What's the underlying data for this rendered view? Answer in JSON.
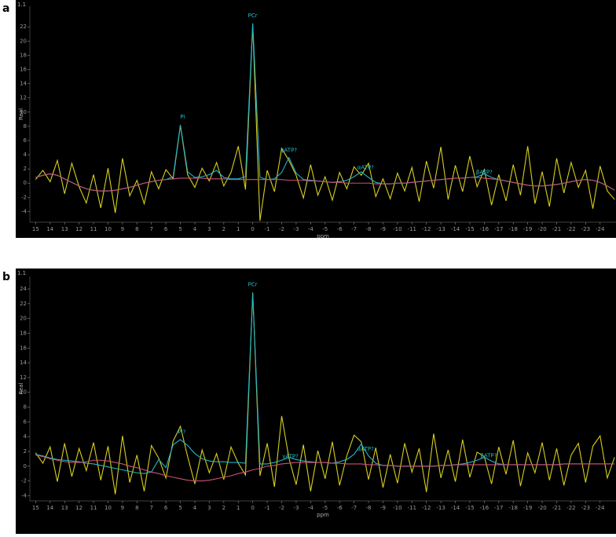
{
  "chart_data": [
    {
      "type": "line",
      "panel_label": "a",
      "corner_label": "1.1",
      "ylabel": "Real",
      "xlabel": "ppm",
      "x": [
        15,
        14.5,
        14,
        13.5,
        13,
        12.5,
        12,
        11.5,
        11,
        10.5,
        10,
        9.5,
        9,
        8.5,
        8,
        7.5,
        7,
        6.5,
        6,
        5.5,
        5,
        4.5,
        4,
        3.5,
        3,
        2.5,
        2,
        1.5,
        1,
        0.5,
        0,
        -0.5,
        -1,
        -1.5,
        -2,
        -2.5,
        -3,
        -3.5,
        -4,
        -4.5,
        -5,
        -5.5,
        -6,
        -6.5,
        -7,
        -7.5,
        -8,
        -8.5,
        -9,
        -9.5,
        -10,
        -10.5,
        -11,
        -11.5,
        -12,
        -12.5,
        -13,
        -13.5,
        -14,
        -14.5,
        -15,
        -15.5,
        -16,
        -16.5,
        -17,
        -17.5,
        -18,
        -18.5,
        -19,
        -19.5,
        -20,
        -20.5,
        -21,
        -21.5,
        -22,
        -22.5,
        -23,
        -23.5,
        -24,
        -24.5,
        -25
      ],
      "series": [
        {
          "color": "#d8cf1e",
          "values": [
            0.5,
            1.8,
            0.2,
            3.2,
            -1.5,
            2.8,
            -0.5,
            -2.8,
            1.2,
            -3.5,
            2.1,
            -4.2,
            3.5,
            -1.8,
            0.4,
            -2.9,
            1.6,
            -0.8,
            1.9,
            0.6,
            8.1,
            1.2,
            -0.6,
            2.1,
            0.3,
            2.9,
            -0.4,
            1.5,
            5.2,
            -0.9,
            22.3,
            -5.3,
            1.8,
            -1.2,
            4.9,
            3.2,
            1.1,
            -2.1,
            2.6,
            -1.7,
            0.9,
            -2.4,
            1.5,
            -0.8,
            2.3,
            1.1,
            2.8,
            -1.9,
            0.6,
            -2.2,
            1.4,
            -1.1,
            2.2,
            -2.6,
            3.1,
            -0.7,
            5.1,
            -2.3,
            2.5,
            -1.2,
            3.8,
            -0.5,
            1.9,
            -3.1,
            1.2,
            -2.5,
            2.6,
            -1.7,
            5.2,
            -2.9,
            1.6,
            -3.3,
            3.5,
            -1.4,
            2.9,
            -0.6,
            1.8,
            -3.6,
            2.4,
            -1.1,
            -2.3
          ]
        },
        {
          "color": "#22b4c8",
          "values": [
            0.8,
            1.1,
            1.3,
            1.1,
            0.6,
            0.1,
            -0.4,
            -0.8,
            -1,
            -1.1,
            -1.1,
            -1,
            -0.8,
            -0.6,
            -0.3,
            0,
            0.2,
            0.4,
            0.5,
            0.9,
            8.2,
            1.6,
            0.8,
            0.9,
            1.2,
            1.8,
            0.8,
            0.6,
            0.6,
            0.9,
            22.5,
            0.8,
            0.5,
            0.6,
            1.5,
            3.6,
            1.4,
            0.5,
            0.4,
            0.3,
            0.2,
            0.1,
            0.2,
            0.4,
            0.9,
            1.6,
            0.8,
            0.1,
            -0.1,
            -0.1,
            0,
            0,
            0.1,
            0.2,
            0.3,
            0.4,
            0.5,
            0.6,
            0.7,
            0.7,
            0.8,
            0.9,
            1.3,
            0.8,
            0.5,
            0.3,
            0.1,
            -0.1,
            -0.3,
            -0.4,
            -0.4,
            -0.3,
            -0.2,
            0,
            0.2,
            0.4,
            0.5,
            0.4,
            0.1,
            -0.4,
            -1
          ]
        },
        {
          "color": "#c8507a",
          "values": [
            0.8,
            1.1,
            1.3,
            1.1,
            0.6,
            0.1,
            -0.4,
            -0.8,
            -1,
            -1.1,
            -1.1,
            -1,
            -0.8,
            -0.6,
            -0.3,
            0,
            0.2,
            0.4,
            0.5,
            0.6,
            0.7,
            0.7,
            0.7,
            0.7,
            0.6,
            0.6,
            0.6,
            0.5,
            0.5,
            0.5,
            0.5,
            0.5,
            0.5,
            0.5,
            0.5,
            0.4,
            0.4,
            0.4,
            0.3,
            0.3,
            0.2,
            0.1,
            0.1,
            0,
            0,
            0,
            0,
            -0.1,
            -0.1,
            -0.1,
            0,
            0,
            0.1,
            0.2,
            0.3,
            0.4,
            0.5,
            0.6,
            0.7,
            0.7,
            0.8,
            0.8,
            0.7,
            0.6,
            0.5,
            0.3,
            0.1,
            -0.1,
            -0.3,
            -0.4,
            -0.4,
            -0.3,
            -0.2,
            0,
            0.2,
            0.4,
            0.5,
            0.4,
            0.1,
            -0.4,
            -1
          ]
        }
      ],
      "annotations": [
        {
          "text": "Pi",
          "x": 4.85,
          "y": 9.3
        },
        {
          "text": "PCr",
          "x": 0,
          "y": 23.6
        },
        {
          "text": "γATP?",
          "x": -2.5,
          "y": 4.6
        },
        {
          "text": "αATP?",
          "x": -7.8,
          "y": 2.2
        },
        {
          "text": "βATP?",
          "x": -16,
          "y": 1.5
        }
      ],
      "xlim": [
        15.4,
        -25.1
      ],
      "ylim": [
        -5.5,
        24.9
      ],
      "xticks": [
        15,
        14,
        13,
        12,
        11,
        10,
        9,
        8,
        7,
        6,
        5,
        4,
        3,
        2,
        1,
        0,
        -1,
        -2,
        -3,
        -4,
        -5,
        -6,
        -7,
        -8,
        -9,
        -10,
        -11,
        -12,
        -13,
        -14,
        -15,
        -16,
        -17,
        -18,
        -19,
        -20,
        -21,
        -22,
        -23,
        -24
      ],
      "yticks": [
        -4,
        -2,
        0,
        2,
        4,
        6,
        8,
        10,
        12,
        14,
        16,
        18,
        20,
        22
      ]
    },
    {
      "type": "line",
      "panel_label": "b",
      "corner_label": "1.1",
      "ylabel": "Real",
      "xlabel": "ppm",
      "x": [
        15,
        14.5,
        14,
        13.5,
        13,
        12.5,
        12,
        11.5,
        11,
        10.5,
        10,
        9.5,
        9,
        8.5,
        8,
        7.5,
        7,
        6.5,
        6,
        5.5,
        5,
        4.5,
        4,
        3.5,
        3,
        2.5,
        2,
        1.5,
        1,
        0.5,
        0,
        -0.5,
        -1,
        -1.5,
        -2,
        -2.5,
        -3,
        -3.5,
        -4,
        -4.5,
        -5,
        -5.5,
        -6,
        -6.5,
        -7,
        -7.5,
        -8,
        -8.5,
        -9,
        -9.5,
        -10,
        -10.5,
        -11,
        -11.5,
        -12,
        -12.5,
        -13,
        -13.5,
        -14,
        -14.5,
        -15,
        -15.5,
        -16,
        -16.5,
        -17,
        -17.5,
        -18,
        -18.5,
        -19,
        -19.5,
        -20,
        -20.5,
        -21,
        -21.5,
        -22,
        -22.5,
        -23,
        -23.5,
        -24,
        -24.5,
        -25
      ],
      "series": [
        {
          "color": "#d8cf1e",
          "values": [
            1.8,
            0.4,
            2.6,
            -2.1,
            3.1,
            -1.4,
            2.4,
            -0.6,
            3.2,
            -1.9,
            2.7,
            -3.8,
            4.1,
            -2.2,
            1.5,
            -3.4,
            2.8,
            1.1,
            -1.6,
            3.4,
            5.4,
            1.3,
            -2.4,
            2.2,
            -0.9,
            1.7,
            -1.8,
            2.6,
            0.4,
            -1.2,
            23.5,
            -1.3,
            3.1,
            -2.8,
            6.8,
            1.1,
            -2.5,
            2.9,
            -3.4,
            2.1,
            -1.7,
            3.3,
            -2.6,
            1.4,
            4.2,
            3.3,
            -1.8,
            2.5,
            -2.9,
            1.6,
            -2.3,
            3.1,
            -0.8,
            2.4,
            -3.5,
            4.4,
            -1.6,
            2.2,
            -2.1,
            3.6,
            -1.5,
            1.9,
            1.3,
            -2.4,
            2.6,
            -1.1,
            3.5,
            -2.7,
            1.8,
            -0.9,
            3.2,
            -1.9,
            2.4,
            -2.6,
            1.5,
            3.1,
            -2.2,
            2.7,
            4.1,
            -1.6,
            1.2
          ]
        },
        {
          "color": "#22b4c8",
          "values": [
            1.6,
            1.4,
            1.1,
            0.9,
            0.8,
            0.7,
            0.6,
            0.4,
            0.3,
            0.1,
            -0.1,
            -0.3,
            -0.5,
            -0.7,
            -0.9,
            -1,
            -0.8,
            0.9,
            -0.2,
            2.9,
            3.6,
            2.8,
            1.7,
            1,
            0.7,
            0.6,
            0.6,
            0.5,
            0.5,
            0.4,
            23.4,
            0.3,
            0.3,
            0.5,
            0.8,
            1.2,
            0.9,
            0.7,
            0.6,
            0.5,
            0.5,
            0.4,
            0.6,
            0.9,
            1.6,
            3,
            1.4,
            0.4,
            0.1,
            0.1,
            0,
            0,
            0,
            0,
            0,
            0,
            0.1,
            0.1,
            0.2,
            0.3,
            0.5,
            0.8,
            1.2,
            0.7,
            0.3,
            0.2,
            0.2,
            0.2,
            0.2,
            0.2,
            0.2,
            0.2,
            0.2,
            0.3,
            0.3,
            0.3,
            0.3,
            0.3,
            0.3,
            0.3,
            0.3
          ]
        },
        {
          "color": "#c8507a",
          "values": [
            1.5,
            1.3,
            1,
            0.8,
            0.6,
            0.5,
            0.5,
            0.6,
            0.8,
            0.8,
            0.7,
            0.5,
            0.3,
            0,
            -0.2,
            -0.5,
            -0.8,
            -1,
            -1.3,
            -1.5,
            -1.7,
            -1.9,
            -2,
            -2,
            -1.9,
            -1.7,
            -1.5,
            -1.3,
            -1,
            -0.8,
            -0.5,
            -0.3,
            0,
            0.1,
            0.3,
            0.4,
            0.5,
            0.5,
            0.5,
            0.5,
            0.5,
            0.4,
            0.4,
            0.3,
            0.3,
            0.3,
            0.2,
            0.2,
            0.1,
            0.1,
            0,
            0,
            0,
            0,
            0,
            0,
            0.1,
            0.1,
            0.2,
            0.2,
            0.2,
            0.2,
            0.2,
            0.2,
            0.2,
            0.2,
            0.2,
            0.2,
            0.2,
            0.2,
            0.2,
            0.2,
            0.2,
            0.3,
            0.3,
            0.3,
            0.3,
            0.3,
            0.3,
            0.3,
            0.3
          ]
        }
      ],
      "annotations": [
        {
          "text": "PCr",
          "x": 0,
          "y": 24.6
        },
        {
          "text": "Pi?",
          "x": 4.9,
          "y": 4.6
        },
        {
          "text": "γATP?",
          "x": -2.6,
          "y": 1.3
        },
        {
          "text": "αATP?",
          "x": -7.8,
          "y": 2.3
        },
        {
          "text": "βATP?",
          "x": -16.3,
          "y": 1.4
        }
      ],
      "xlim": [
        15.4,
        -25.1
      ],
      "ylim": [
        -4.7,
        25.7
      ],
      "xticks": [
        15,
        14,
        13,
        12,
        11,
        10,
        9,
        8,
        7,
        6,
        5,
        4,
        3,
        2,
        1,
        0,
        -1,
        -2,
        -3,
        -4,
        -5,
        -6,
        -7,
        -8,
        -9,
        -10,
        -11,
        -12,
        -13,
        -14,
        -15,
        -16,
        -17,
        -18,
        -19,
        -20,
        -21,
        -22,
        -23,
        -24
      ],
      "yticks": [
        -4,
        -2,
        0,
        2,
        4,
        6,
        8,
        10,
        12,
        14,
        16,
        18,
        20,
        22,
        24
      ]
    }
  ]
}
